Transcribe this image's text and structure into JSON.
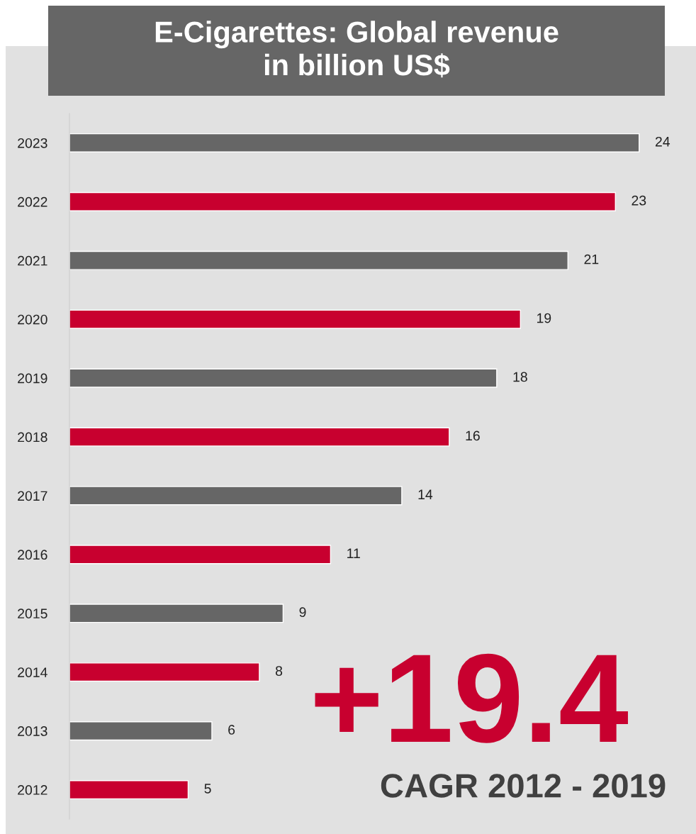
{
  "chart_data": {
    "type": "bar",
    "orientation": "horizontal",
    "title": "E-Cigarettes: Global revenue\nin billion US$",
    "categories": [
      "2023",
      "2022",
      "2021",
      "2020",
      "2019",
      "2018",
      "2017",
      "2016",
      "2015",
      "2014",
      "2013",
      "2012"
    ],
    "values": [
      24,
      23,
      21,
      19,
      18,
      16,
      14,
      11,
      9,
      8,
      6,
      5
    ],
    "colors": [
      "#666666",
      "#c8002f",
      "#666666",
      "#c8002f",
      "#666666",
      "#c8002f",
      "#666666",
      "#c8002f",
      "#666666",
      "#c8002f",
      "#666666",
      "#c8002f"
    ],
    "data_labels": true,
    "grid": false,
    "legend": false,
    "annotations": [
      "+19.4",
      "CAGR 2012 - 2019"
    ]
  }
}
